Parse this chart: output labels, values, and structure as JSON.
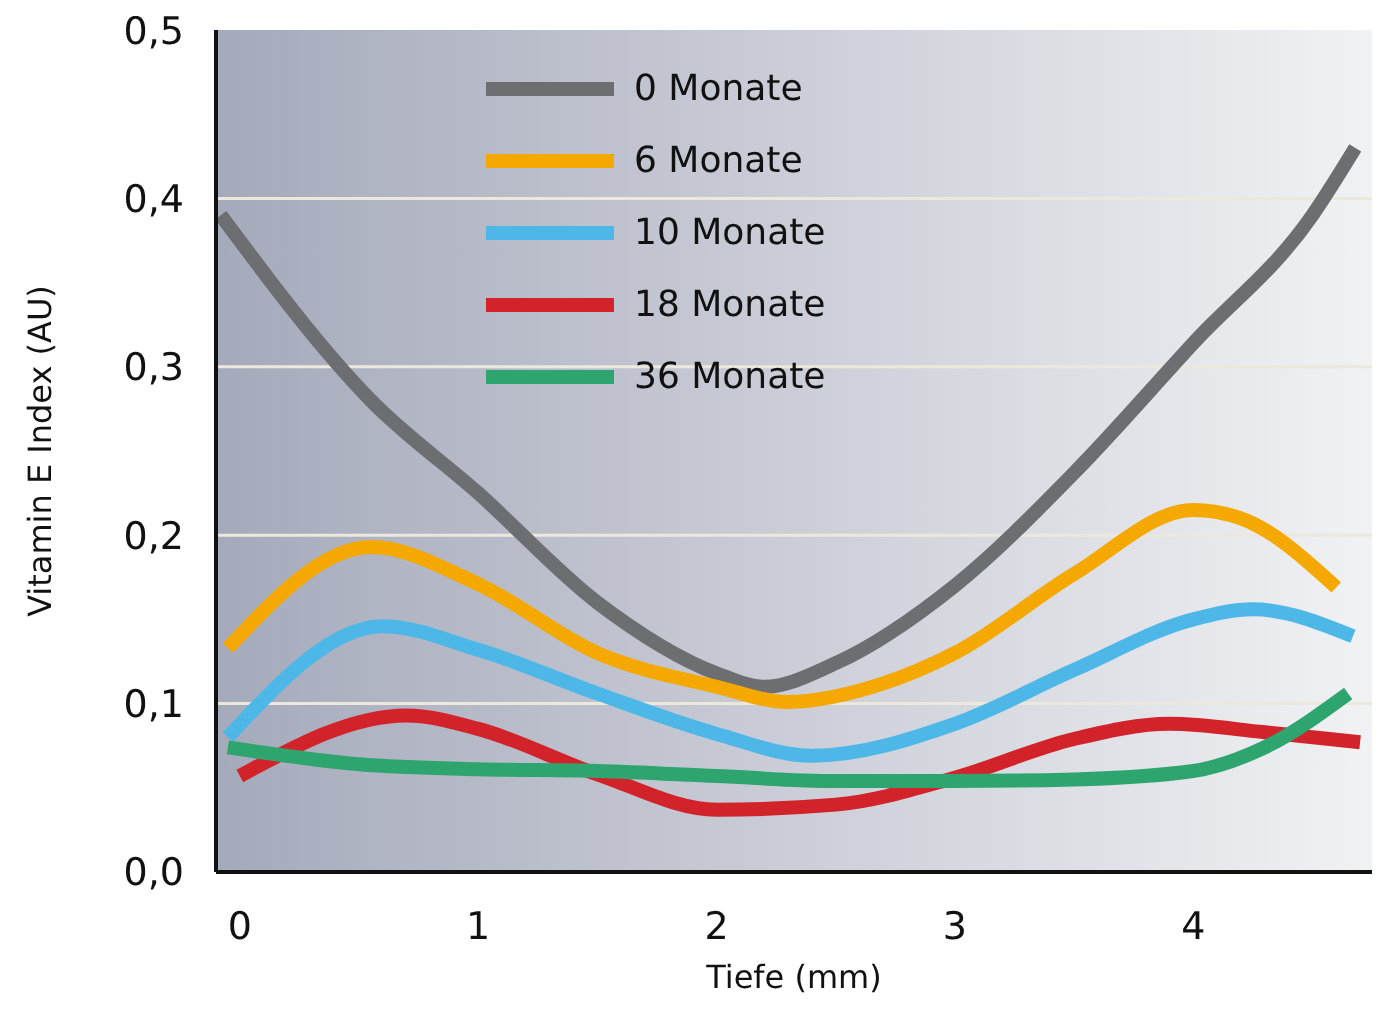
{
  "chart_data": {
    "type": "line",
    "xlabel": "Tiefe (mm)",
    "ylabel": "Vitamin E Index (AU)",
    "xlim": [
      -0.1,
      4.75
    ],
    "xticks": [
      0,
      1,
      2,
      3,
      4
    ],
    "ylim": [
      0,
      0.5
    ],
    "yticks": [
      {
        "value": 0,
        "label": "0,0"
      },
      {
        "value": 0.1,
        "label": "0,1"
      },
      {
        "value": 0.2,
        "label": "0,2"
      },
      {
        "value": 0.3,
        "label": "0,3"
      },
      {
        "value": 0.4,
        "label": "0,4"
      },
      {
        "value": 0.5,
        "label": "0,5"
      }
    ],
    "grid": "y",
    "legend": "top",
    "marker": "none",
    "line_style": "solid",
    "series": [
      {
        "name": "0 Monate",
        "color": "#6d6e71",
        "x": [
          -0.08,
          0.55,
          1,
          1.5,
          2,
          2.2,
          2.5,
          3,
          3.5,
          4,
          4.5,
          4.68
        ],
        "values": [
          0.39,
          0.28,
          0.225,
          0.16,
          0.118,
          0.11,
          0.124,
          0.17,
          0.237,
          0.314,
          0.39,
          0.43
        ]
      },
      {
        "name": "6 Monate",
        "color": "#f5a800",
        "x": [
          -0.05,
          0.55,
          1,
          1.5,
          2,
          2.3,
          2.7,
          3,
          3.5,
          4,
          4.2,
          4.6
        ],
        "values": [
          0.133,
          0.193,
          0.171,
          0.13,
          0.11,
          0.101,
          0.112,
          0.13,
          0.177,
          0.215,
          0.21,
          0.169
        ]
      },
      {
        "name": "10 Monate",
        "color": "#4db8e8",
        "x": [
          -0.05,
          0.6,
          1,
          1.5,
          2,
          2.4,
          3,
          3.5,
          4,
          4.25,
          4.67
        ],
        "values": [
          0.08,
          0.146,
          0.132,
          0.106,
          0.082,
          0.069,
          0.088,
          0.12,
          0.15,
          0.156,
          0.14
        ]
      },
      {
        "name": "18 Monate",
        "color": "#d2232a",
        "x": [
          0,
          0.7,
          1,
          1.5,
          2,
          2.5,
          3,
          3.5,
          3.9,
          4.3,
          4.7
        ],
        "values": [
          0.057,
          0.093,
          0.085,
          0.058,
          0.037,
          0.04,
          0.056,
          0.079,
          0.088,
          0.083,
          0.077
        ]
      },
      {
        "name": "36 Monate",
        "color": "#2ea56f",
        "x": [
          -0.05,
          0.5,
          1,
          1.5,
          2,
          2.5,
          3,
          3.5,
          4,
          4.3,
          4.65
        ],
        "values": [
          0.074,
          0.064,
          0.061,
          0.06,
          0.057,
          0.054,
          0.054,
          0.055,
          0.06,
          0.074,
          0.106
        ]
      }
    ]
  }
}
